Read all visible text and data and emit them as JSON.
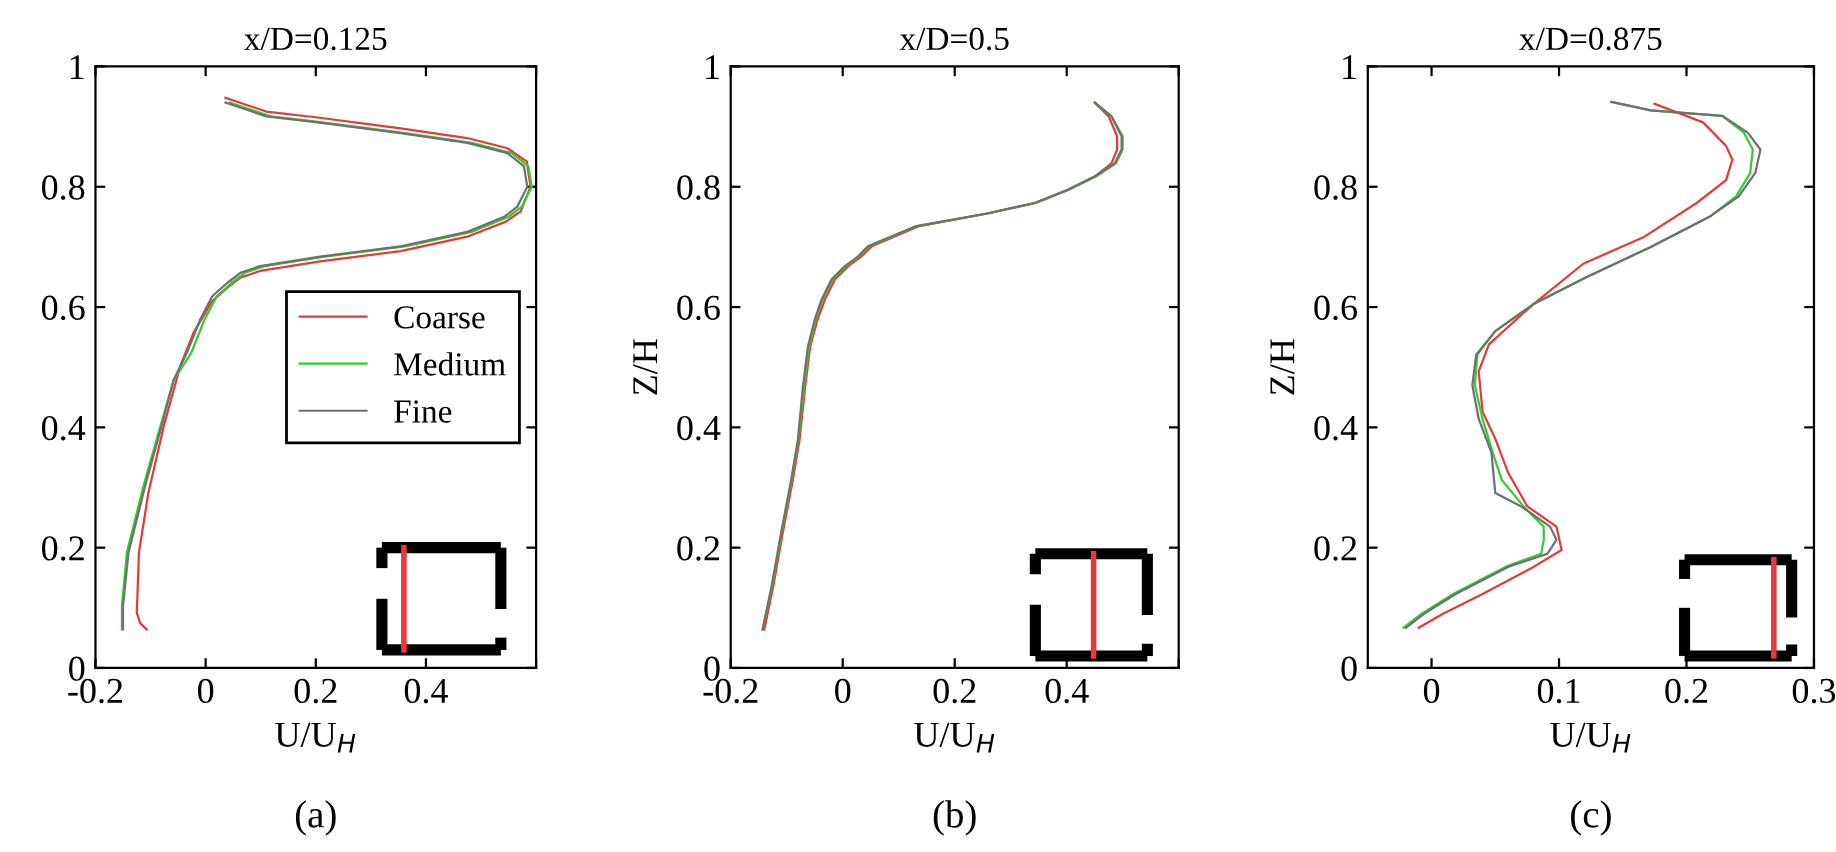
{
  "chart_data": [
    {
      "type": "line",
      "title": "x/D=0.125",
      "xlabel": "U/U$_{H}$",
      "annotations": [
        "(a)"
      ],
      "xlim": [
        -0.2,
        0.6
      ],
      "ylim": [
        0,
        1
      ],
      "xticks": [
        -0.2,
        0,
        0.2,
        0.4,
        {
          "value": 0.6,
          "label": null
        }
      ],
      "yticks": [
        0,
        0.2,
        0.4,
        0.6,
        0.8,
        1
      ],
      "grid": false,
      "legend": "right",
      "line_style": "solid",
      "marker": "none",
      "series": [
        {
          "name": "Coarse",
          "color": "#e8393a",
          "x": [
            0.036,
            0.11,
            0.196,
            0.354,
            0.475,
            0.548,
            0.583,
            0.59,
            0.572,
            0.545,
            0.475,
            0.354,
            0.208,
            0.099,
            0.063,
            0.039,
            0.012,
            -0.022,
            -0.046,
            -0.076,
            -0.104,
            -0.121,
            -0.125,
            -0.119,
            -0.107
          ],
          "values": [
            0.948,
            0.925,
            0.916,
            0.897,
            0.881,
            0.864,
            0.842,
            0.8,
            0.759,
            0.742,
            0.717,
            0.693,
            0.676,
            0.66,
            0.649,
            0.632,
            0.61,
            0.557,
            0.502,
            0.402,
            0.291,
            0.192,
            0.092,
            0.075,
            0.064
          ]
        },
        {
          "name": "Medium",
          "color": "#33cc33",
          "x": [
            0.044,
            0.118,
            0.204,
            0.362,
            0.483,
            0.556,
            0.586,
            0.592,
            0.574,
            0.55,
            0.483,
            0.362,
            0.216,
            0.107,
            0.071,
            0.047,
            0.02,
            -0.002,
            -0.026,
            -0.058,
            -0.082,
            -0.113,
            -0.143,
            -0.152,
            -0.152
          ],
          "values": [
            0.94,
            0.917,
            0.908,
            0.889,
            0.873,
            0.856,
            0.834,
            0.8,
            0.767,
            0.75,
            0.725,
            0.701,
            0.684,
            0.668,
            0.657,
            0.64,
            0.618,
            0.579,
            0.524,
            0.479,
            0.402,
            0.302,
            0.192,
            0.103,
            0.064
          ]
        },
        {
          "name": "Fine",
          "color": "#707070",
          "x": [
            0.036,
            0.11,
            0.196,
            0.354,
            0.475,
            0.548,
            0.578,
            0.584,
            0.566,
            0.542,
            0.475,
            0.354,
            0.208,
            0.099,
            0.063,
            0.039,
            0.012,
            -0.01,
            -0.034,
            -0.058,
            -0.08,
            -0.11,
            -0.14,
            -0.15,
            -0.15
          ],
          "values": [
            0.94,
            0.917,
            0.908,
            0.889,
            0.873,
            0.856,
            0.834,
            0.8,
            0.767,
            0.75,
            0.725,
            0.701,
            0.684,
            0.668,
            0.657,
            0.64,
            0.618,
            0.579,
            0.524,
            0.479,
            0.402,
            0.302,
            0.192,
            0.103,
            0.064
          ]
        }
      ]
    },
    {
      "type": "line",
      "title": "x/D=0.5",
      "xlabel": "U/U$_{H}$",
      "ylabel": "Z/H",
      "annotations": [
        "(b)"
      ],
      "xlim": [
        -0.2,
        0.6
      ],
      "ylim": [
        0,
        1
      ],
      "xticks": [
        -0.2,
        0,
        0.2,
        0.4,
        {
          "value": 0.6,
          "label": null
        }
      ],
      "yticks": [
        0,
        0.2,
        0.4,
        0.6,
        0.8,
        1
      ],
      "grid": false,
      "line_style": "solid",
      "marker": "none",
      "series": [
        {
          "color": "#e8393a",
          "x": [
            0.45,
            0.475,
            0.49,
            0.49,
            0.48,
            0.45,
            0.402,
            0.343,
            0.26,
            0.135,
            0.052,
            0.033,
            0.01,
            -0.014,
            -0.032,
            -0.045,
            -0.058,
            -0.067,
            -0.077,
            -0.089,
            -0.107,
            -0.124,
            -0.14
          ],
          "values": [
            0.94,
            0.917,
            0.884,
            0.862,
            0.839,
            0.817,
            0.795,
            0.773,
            0.756,
            0.734,
            0.701,
            0.684,
            0.668,
            0.646,
            0.612,
            0.579,
            0.535,
            0.468,
            0.38,
            0.313,
            0.225,
            0.136,
            0.064
          ]
        },
        {
          "color": "#33cc33",
          "x": [
            0.45,
            0.48,
            0.5,
            0.5,
            0.488,
            0.452,
            0.404,
            0.345,
            0.262,
            0.131,
            0.047,
            0.029,
            0.006,
            -0.018,
            -0.036,
            -0.048,
            -0.06,
            -0.069,
            -0.079,
            -0.091,
            -0.109,
            -0.126,
            -0.143
          ],
          "values": [
            0.94,
            0.917,
            0.884,
            0.862,
            0.839,
            0.817,
            0.795,
            0.773,
            0.756,
            0.734,
            0.701,
            0.684,
            0.668,
            0.646,
            0.612,
            0.579,
            0.535,
            0.468,
            0.38,
            0.313,
            0.225,
            0.136,
            0.064
          ]
        },
        {
          "color": "#707070",
          "x": [
            0.45,
            0.48,
            0.498,
            0.498,
            0.486,
            0.45,
            0.402,
            0.343,
            0.26,
            0.129,
            0.045,
            0.027,
            0.004,
            -0.02,
            -0.038,
            -0.05,
            -0.062,
            -0.071,
            -0.08,
            -0.092,
            -0.11,
            -0.127,
            -0.143
          ],
          "values": [
            0.94,
            0.917,
            0.884,
            0.862,
            0.839,
            0.817,
            0.795,
            0.773,
            0.756,
            0.734,
            0.701,
            0.684,
            0.668,
            0.646,
            0.612,
            0.579,
            0.535,
            0.468,
            0.38,
            0.313,
            0.225,
            0.136,
            0.064
          ]
        }
      ]
    },
    {
      "type": "line",
      "title": "x/D=0.875",
      "xlabel": "U/U$_{H}$",
      "ylabel": "Z/H",
      "annotations": [
        "(c)"
      ],
      "xlim": [
        -0.05,
        0.3
      ],
      "ylim": [
        0,
        1
      ],
      "xticks": [
        0,
        0.1,
        0.2,
        0.3
      ],
      "yticks": [
        0,
        0.2,
        0.4,
        0.6,
        0.8,
        1
      ],
      "grid": false,
      "line_style": "solid",
      "marker": "none",
      "series": [
        {
          "color": "#e8393a",
          "x": [
            0.175,
            0.213,
            0.231,
            0.236,
            0.231,
            0.208,
            0.167,
            0.119,
            0.08,
            0.045,
            0.037,
            0.04,
            0.05,
            0.06,
            0.075,
            0.098,
            0.102,
            0.08,
            0.04,
            0.009,
            -0.01
          ],
          "values": [
            0.938,
            0.907,
            0.868,
            0.845,
            0.811,
            0.773,
            0.717,
            0.672,
            0.605,
            0.538,
            0.493,
            0.426,
            0.381,
            0.325,
            0.269,
            0.235,
            0.196,
            0.168,
            0.123,
            0.09,
            0.067
          ]
        },
        {
          "color": "#33cc33",
          "x": [
            0.141,
            0.172,
            0.228,
            0.245,
            0.252,
            0.25,
            0.239,
            0.218,
            0.172,
            0.121,
            0.08,
            0.05,
            0.036,
            0.034,
            0.04,
            0.048,
            0.055,
            0.072,
            0.088,
            0.088,
            0.086,
            0.058,
            0.017,
            -0.008,
            -0.022
          ],
          "values": [
            0.941,
            0.927,
            0.918,
            0.89,
            0.862,
            0.823,
            0.784,
            0.75,
            0.7,
            0.649,
            0.605,
            0.56,
            0.521,
            0.47,
            0.414,
            0.358,
            0.313,
            0.269,
            0.235,
            0.213,
            0.19,
            0.168,
            0.123,
            0.09,
            0.067
          ]
        },
        {
          "color": "#707070",
          "x": [
            0.141,
            0.172,
            0.228,
            0.248,
            0.258,
            0.254,
            0.241,
            0.218,
            0.172,
            0.121,
            0.08,
            0.05,
            0.035,
            0.032,
            0.037,
            0.047,
            0.05,
            0.07,
            0.093,
            0.098,
            0.091,
            0.06,
            0.019,
            -0.006,
            -0.02
          ],
          "values": [
            0.941,
            0.927,
            0.918,
            0.89,
            0.862,
            0.823,
            0.784,
            0.75,
            0.7,
            0.649,
            0.605,
            0.56,
            0.521,
            0.47,
            0.414,
            0.358,
            0.291,
            0.269,
            0.235,
            0.213,
            0.19,
            0.168,
            0.123,
            0.09,
            0.067
          ]
        }
      ]
    }
  ]
}
